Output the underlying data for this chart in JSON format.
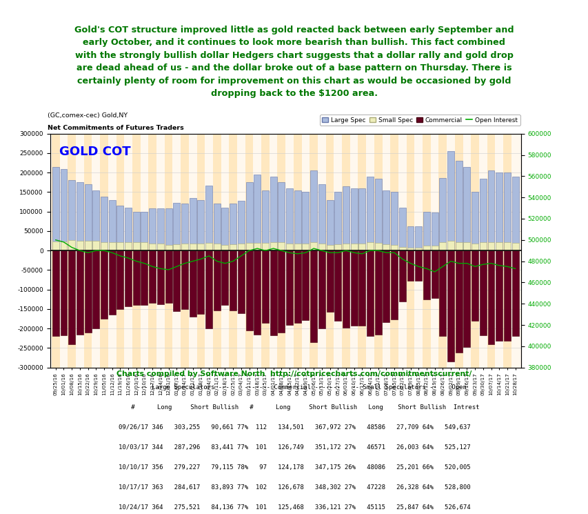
{
  "title_text": "Gold's COT structure improved little as gold reacted back between early September and\nearly October, and it continues to look more bearish than bullish. This fact combined\nwith the strongly bullish dollar Hedgers chart suggests that a dollar rally and gold drop\nare dead ahead of us - and the dollar broke out of a base pattern on Thursday. There is\ncertainly plenty of room for improvement on this chart as would be occasioned by gold\ndropping back to the $1200 area.",
  "chart_title": "GOLD COT",
  "subtitle1": "(GC,comex-cec) Gold,NY",
  "subtitle2": "Net Commitments of Futures Traders",
  "credit": "Charts compiled by Software North  http://cotpricecharts.com/commitmentscurrent/",
  "ylim_left": [
    -300000,
    300000
  ],
  "ylim_right": [
    380000,
    600000
  ],
  "bg_color": "#FFFFFF",
  "plot_bg_color": "#FFF8EE",
  "stripe_color": "#FFE8C0",
  "large_spec_color": "#AABBDD",
  "large_spec_edge": "#6677AA",
  "small_spec_color": "#EEEEBB",
  "small_spec_edge": "#AAAA77",
  "commercial_color": "#660022",
  "open_interest_color": "#00AA00",
  "zero_line_color": "#000000",
  "x_labels": [
    "09/25/16",
    "10/01/16",
    "10/08/16",
    "10/15/16",
    "10/22/16",
    "10/29/16",
    "11/05/16",
    "11/12/16",
    "11/19/16",
    "11/26/16",
    "12/03/16",
    "12/10/16",
    "12/17/16",
    "12/24/16",
    "12/31/16",
    "01/07/17",
    "01/14/17",
    "01/21/17",
    "01/28/17",
    "02/04/17",
    "02/11/17",
    "02/18/17",
    "02/25/17",
    "03/04/17",
    "03/11/17",
    "03/18/17",
    "03/25/17",
    "04/01/17",
    "04/08/17",
    "04/15/17",
    "04/22/17",
    "04/29/17",
    "05/06/17",
    "05/13/17",
    "05/20/17",
    "05/27/17",
    "06/03/17",
    "06/10/17",
    "06/17/17",
    "06/24/17",
    "07/01/17",
    "07/08/17",
    "07/15/17",
    "07/22/17",
    "07/29/17",
    "08/05/17",
    "08/12/17",
    "08/19/17",
    "08/26/17",
    "09/02/17",
    "09/09/17",
    "09/16/17",
    "09/23/17",
    "09/30/17",
    "10/07/17",
    "10/14/17",
    "10/21/17",
    "10/28/17"
  ],
  "large_spec": [
    215000,
    210000,
    180000,
    175000,
    170000,
    155000,
    138000,
    130000,
    115000,
    110000,
    100000,
    100000,
    108000,
    109000,
    108000,
    122000,
    120000,
    135000,
    130000,
    167000,
    120000,
    110000,
    120000,
    128000,
    175000,
    195000,
    155000,
    190000,
    175000,
    160000,
    155000,
    150000,
    205000,
    170000,
    130000,
    150000,
    165000,
    160000,
    160000,
    190000,
    185000,
    155000,
    150000,
    110000,
    62000,
    62000,
    100000,
    97000,
    187000,
    255000,
    230000,
    215000,
    150000,
    185000,
    205000,
    200000,
    200000,
    190000
  ],
  "small_spec": [
    23000,
    23000,
    27000,
    25000,
    25000,
    25000,
    22000,
    22000,
    22000,
    22000,
    22000,
    22000,
    18000,
    18000,
    15000,
    17000,
    18000,
    18000,
    18000,
    20000,
    18000,
    14000,
    16000,
    18000,
    20000,
    20000,
    20000,
    22000,
    22000,
    18000,
    18000,
    18000,
    22000,
    18000,
    15000,
    16000,
    18000,
    18000,
    18000,
    22000,
    20000,
    17000,
    15000,
    10000,
    8000,
    8000,
    12000,
    12000,
    22000,
    25000,
    22000,
    22000,
    18000,
    22000,
    22000,
    22000,
    22000,
    20000
  ],
  "commercial": [
    -220000,
    -218000,
    -240000,
    -215000,
    -210000,
    -200000,
    -175000,
    -165000,
    -150000,
    -143000,
    -140000,
    -140000,
    -135000,
    -138000,
    -135000,
    -155000,
    -150000,
    -170000,
    -163000,
    -200000,
    -153000,
    -140000,
    -153000,
    -160000,
    -205000,
    -215000,
    -185000,
    -218000,
    -210000,
    -190000,
    -185000,
    -178000,
    -235000,
    -200000,
    -158000,
    -180000,
    -198000,
    -192000,
    -192000,
    -220000,
    -215000,
    -183000,
    -177000,
    -130000,
    -78000,
    -78000,
    -125000,
    -122000,
    -220000,
    -285000,
    -262000,
    -247000,
    -180000,
    -218000,
    -240000,
    -232000,
    -232000,
    -220000
  ],
  "open_interest": [
    500000,
    498000,
    493000,
    490000,
    488000,
    490000,
    490000,
    488000,
    485000,
    483000,
    480000,
    478000,
    475000,
    473000,
    472000,
    475000,
    478000,
    480000,
    482000,
    485000,
    480000,
    478000,
    480000,
    485000,
    490000,
    492000,
    490000,
    492000,
    490000,
    488000,
    487000,
    488000,
    492000,
    490000,
    488000,
    488000,
    490000,
    488000,
    487000,
    490000,
    490000,
    488000,
    488000,
    482000,
    478000,
    475000,
    473000,
    470000,
    475000,
    480000,
    478000,
    478000,
    475000,
    477000,
    478000,
    476000,
    475000,
    473000
  ],
  "table_data": [
    [
      "09/26/17",
      "346",
      "303,255",
      "90,661",
      "77%",
      "112",
      "134,501",
      "367,972",
      "27%",
      "48586",
      "27,709",
      "64%",
      "549,637"
    ],
    [
      "10/03/17",
      "344",
      "287,296",
      "83,441",
      "77%",
      "101",
      "126,749",
      "351,172",
      "27%",
      "46571",
      "26,003",
      "64%",
      "525,127"
    ],
    [
      "10/10/17",
      "356",
      "279,227",
      "79,115",
      "78%",
      "97",
      "124,178",
      "347,175",
      "26%",
      "48086",
      "25,201",
      "66%",
      "520,005"
    ],
    [
      "10/17/17",
      "363",
      "284,617",
      "83,893",
      "77%",
      "102",
      "126,678",
      "348,302",
      "27%",
      "47228",
      "26,328",
      "64%",
      "528,800"
    ],
    [
      "10/24/17",
      "364",
      "275,521",
      "84,136",
      "77%",
      "101",
      "125,468",
      "336,121",
      "27%",
      "45115",
      "25,847",
      "64%",
      "526,674"
    ]
  ]
}
